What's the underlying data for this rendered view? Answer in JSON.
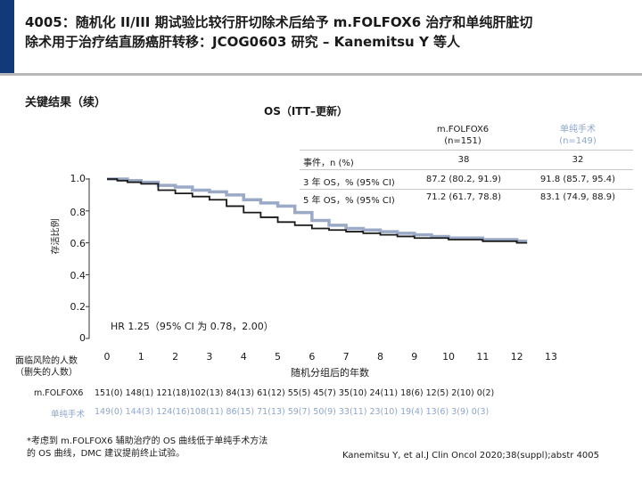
{
  "header": {
    "title_line1": "4005：随机化 II/III 期试验比较行肝切除术后给予 m.FOLFOX6 治疗和单纯肝脏切",
    "title_line2": "除术用于治疗结直肠癌肝转移：JCOG0603 研究 – Kanemitsu Y 等人"
  },
  "section_title": "关键结果（续）",
  "chart_title": "OS（ITT–更新）",
  "table": {
    "col_a_name": "m.FOLFOX6",
    "col_a_n": "(n=151)",
    "col_b_name": "单纯手术",
    "col_b_n": "(n=149)",
    "rows": [
      {
        "label": "事件，n (%)",
        "a": "38",
        "b": "32"
      },
      {
        "label": "3 年 OS，% (95% CI)",
        "a": "87.2 (80.2, 91.9)",
        "b": "91.8 (85.7, 95.4)"
      },
      {
        "label": "5 年 OS，% (95% CI)",
        "a": "71.2 (61.7, 78.8)",
        "b": "83.1 (74.9, 88.9)"
      }
    ]
  },
  "colors": {
    "folfox": "#1a1a1a",
    "surgery": "#9aaac6",
    "accent": "#123a7a"
  },
  "chart_data": {
    "type": "line",
    "ylabel": "存活比例",
    "xlabel": "随机分组后的年数",
    "xlim": [
      0,
      13
    ],
    "ylim": [
      0,
      1.0
    ],
    "y_ticks": [
      "1.0",
      "0.8",
      "0.6",
      "0.4",
      "0.2",
      "0"
    ],
    "x_ticks": [
      "0",
      "1",
      "2",
      "3",
      "4",
      "5",
      "6",
      "7",
      "8",
      "9",
      "10",
      "11",
      "12",
      "13"
    ],
    "annotation": "HR 1.25（95% CI 为 0.78，2.00）",
    "series": [
      {
        "name": "m.FOLFOX6",
        "x": [
          0,
          0.3,
          0.6,
          1.0,
          1.5,
          2.0,
          2.5,
          3.0,
          3.5,
          4.0,
          4.5,
          5.0,
          5.5,
          6.0,
          6.5,
          7.0,
          7.5,
          8.0,
          8.5,
          9.0,
          9.5,
          10.0,
          10.5,
          11.0,
          11.5,
          12.0,
          12.3
        ],
        "y": [
          1.0,
          0.99,
          0.98,
          0.97,
          0.93,
          0.91,
          0.89,
          0.87,
          0.83,
          0.79,
          0.76,
          0.73,
          0.71,
          0.69,
          0.68,
          0.67,
          0.66,
          0.65,
          0.64,
          0.63,
          0.63,
          0.62,
          0.62,
          0.61,
          0.61,
          0.6,
          0.6
        ]
      },
      {
        "name": "单纯手术",
        "x": [
          0,
          0.3,
          0.6,
          1.0,
          1.5,
          2.0,
          2.5,
          3.0,
          3.5,
          4.0,
          4.5,
          5.0,
          5.5,
          6.0,
          6.5,
          7.0,
          7.5,
          8.0,
          8.5,
          9.0,
          9.5,
          10.0,
          10.5,
          11.0,
          11.5,
          12.0,
          12.3
        ],
        "y": [
          1.0,
          1.0,
          0.99,
          0.98,
          0.96,
          0.95,
          0.93,
          0.92,
          0.9,
          0.87,
          0.85,
          0.83,
          0.79,
          0.74,
          0.71,
          0.69,
          0.68,
          0.67,
          0.66,
          0.65,
          0.64,
          0.63,
          0.63,
          0.62,
          0.62,
          0.61,
          0.61
        ]
      }
    ]
  },
  "risk_table": {
    "title_line1": "面临风险的人数",
    "title_line2": "（删失的人数）",
    "folfox_label": "m.FOLFOX6",
    "folfox_values": "151(0) 148(1) 121(18)102(13) 84(13) 61(12) 55(5) 45(7) 35(10) 24(11) 18(6) 12(5) 2(10) 0(2)",
    "surgery_label": "单纯手术",
    "surgery_values": "149(0) 144(3) 124(16)108(11) 86(15) 71(13) 59(7) 50(9) 33(11) 23(10) 19(4) 13(6) 3(9) 0(3)"
  },
  "footnote_line1": "*考虑到 m.FOLFOX6 辅助治疗的 OS 曲线低于单纯手术方法",
  "footnote_line2": "的 OS 曲线，DMC 建议提前终止试验。",
  "citation": "Kanemitsu Y, et al.J Clin Oncol 2020;38(suppl);abstr 4005"
}
